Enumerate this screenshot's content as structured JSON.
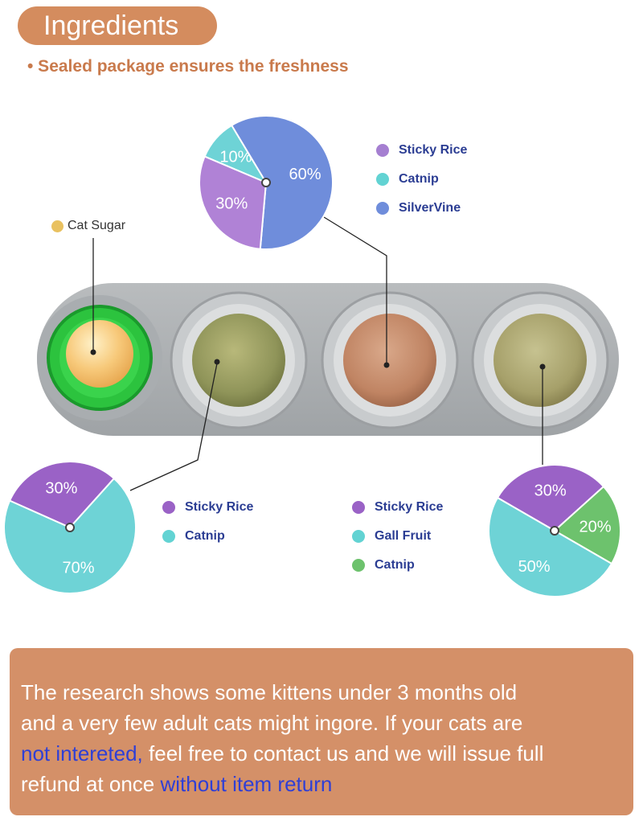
{
  "header": {
    "title": "Ingredients",
    "subtitle": "• Sealed package ensures the freshness"
  },
  "cat_sugar": {
    "label": "Cat Sugar",
    "color": "#e9c160"
  },
  "legends": {
    "top": [
      {
        "label": "Sticky Rice",
        "color": "#a57fd1"
      },
      {
        "label": "Catnip",
        "color": "#62d3d3"
      },
      {
        "label": "SilverVine",
        "color": "#6f8ddb"
      }
    ],
    "bottom_left": [
      {
        "label": "Sticky Rice",
        "color": "#9a62c6"
      },
      {
        "label": "Catnip",
        "color": "#62d3d3"
      }
    ],
    "bottom_middle": [
      {
        "label": "Sticky Rice",
        "color": "#9a62c6"
      },
      {
        "label": "Gall Fruit",
        "color": "#62d3d3"
      },
      {
        "label": "Catnip",
        "color": "#6dc26d"
      }
    ]
  },
  "chart_data": [
    {
      "type": "pie",
      "name": "top-ball-mix",
      "categories": [
        "Catnip",
        "SilverVine",
        "Sticky Rice"
      ],
      "values": [
        10,
        60,
        30
      ],
      "labels": [
        "10%",
        "60%",
        "30%"
      ],
      "colors": [
        "#6ed3d6",
        "#6f8ddb",
        "#b082d6"
      ]
    },
    {
      "type": "pie",
      "name": "bottom-left-ball-mix",
      "categories": [
        "Sticky Rice",
        "Catnip"
      ],
      "values": [
        30,
        70
      ],
      "labels": [
        "30%",
        "70%"
      ],
      "colors": [
        "#9a62c6",
        "#6ed3d6"
      ]
    },
    {
      "type": "pie",
      "name": "bottom-right-ball-mix",
      "categories": [
        "Sticky Rice",
        "Catnip",
        "Gall Fruit"
      ],
      "values": [
        30,
        20,
        50
      ],
      "labels": [
        "30%",
        "20%",
        "50%"
      ],
      "colors": [
        "#9a62c6",
        "#6dc26d",
        "#6ed3d6"
      ]
    }
  ],
  "notice": {
    "line1": "The research shows some kittens under 3 months old",
    "line2": "and a very few adult cats might ingore. If your cats are",
    "link1": "not intereted,",
    "line3_rest": " feel free to contact us and we will issue full",
    "line4_start": "refund at once ",
    "link2": "without item return",
    "link_color": "#2f3fd6"
  }
}
